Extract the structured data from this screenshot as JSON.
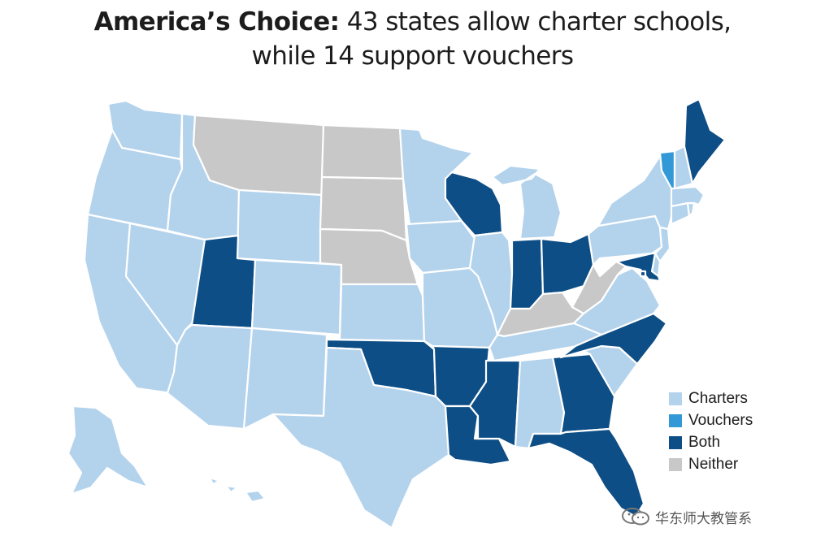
{
  "title": {
    "lead": "America’s Choice:",
    "rest": " 43 states allow charter schools,",
    "line2": "while 14 support vouchers"
  },
  "colors": {
    "Charters": "#b3d2ec",
    "Vouchers": "#3399d6",
    "Both": "#0d4e86",
    "Neither": "#c8c8c8"
  },
  "legend": [
    {
      "key": "Charters",
      "label": "Charters"
    },
    {
      "key": "Vouchers",
      "label": "Vouchers"
    },
    {
      "key": "Both",
      "label": "Both"
    },
    {
      "key": "Neither",
      "label": "Neither"
    }
  ],
  "states": [
    {
      "id": "WA",
      "status": "Charters"
    },
    {
      "id": "OR",
      "status": "Charters"
    },
    {
      "id": "CA",
      "status": "Charters"
    },
    {
      "id": "NV",
      "status": "Charters"
    },
    {
      "id": "ID",
      "status": "Charters"
    },
    {
      "id": "MT",
      "status": "Neither"
    },
    {
      "id": "WY",
      "status": "Charters"
    },
    {
      "id": "UT",
      "status": "Both"
    },
    {
      "id": "CO",
      "status": "Charters"
    },
    {
      "id": "AZ",
      "status": "Charters"
    },
    {
      "id": "NM",
      "status": "Charters"
    },
    {
      "id": "ND",
      "status": "Neither"
    },
    {
      "id": "SD",
      "status": "Neither"
    },
    {
      "id": "NE",
      "status": "Neither"
    },
    {
      "id": "KS",
      "status": "Charters"
    },
    {
      "id": "OK",
      "status": "Both"
    },
    {
      "id": "TX",
      "status": "Charters"
    },
    {
      "id": "MN",
      "status": "Charters"
    },
    {
      "id": "IA",
      "status": "Charters"
    },
    {
      "id": "MO",
      "status": "Charters"
    },
    {
      "id": "AR",
      "status": "Both"
    },
    {
      "id": "LA",
      "status": "Both"
    },
    {
      "id": "WI",
      "status": "Both"
    },
    {
      "id": "IL",
      "status": "Charters"
    },
    {
      "id": "MI",
      "status": "Charters"
    },
    {
      "id": "IN",
      "status": "Both"
    },
    {
      "id": "OH",
      "status": "Both"
    },
    {
      "id": "KY",
      "status": "Neither"
    },
    {
      "id": "TN",
      "status": "Charters"
    },
    {
      "id": "MS",
      "status": "Both"
    },
    {
      "id": "AL",
      "status": "Charters"
    },
    {
      "id": "GA",
      "status": "Both"
    },
    {
      "id": "FL",
      "status": "Both"
    },
    {
      "id": "SC",
      "status": "Charters"
    },
    {
      "id": "NC",
      "status": "Both"
    },
    {
      "id": "VA",
      "status": "Charters"
    },
    {
      "id": "WV",
      "status": "Neither"
    },
    {
      "id": "PA",
      "status": "Charters"
    },
    {
      "id": "NY",
      "status": "Charters"
    },
    {
      "id": "VT",
      "status": "Vouchers"
    },
    {
      "id": "NH",
      "status": "Charters"
    },
    {
      "id": "ME",
      "status": "Both"
    },
    {
      "id": "MA",
      "status": "Charters"
    },
    {
      "id": "RI",
      "status": "Charters"
    },
    {
      "id": "CT",
      "status": "Charters"
    },
    {
      "id": "NJ",
      "status": "Charters"
    },
    {
      "id": "DE",
      "status": "Charters"
    },
    {
      "id": "MD",
      "status": "Both"
    },
    {
      "id": "DC",
      "status": "Both"
    },
    {
      "id": "AK",
      "status": "Charters"
    },
    {
      "id": "HI",
      "status": "Charters"
    }
  ],
  "watermark": {
    "text": "华东师大教管系"
  }
}
